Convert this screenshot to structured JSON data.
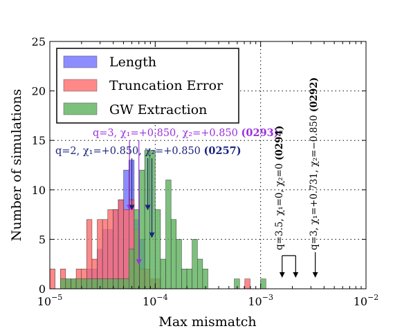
{
  "chart_data": {
    "type": "bar",
    "subtype": "histogram",
    "xscale": "log",
    "xlim": [
      1e-05,
      0.01
    ],
    "ylim": [
      0,
      25
    ],
    "xlabel": "Max mismatch",
    "ylabel": "Number of simulations",
    "xticks": [
      {
        "value": 1e-05,
        "base": "10",
        "exp": "−5"
      },
      {
        "value": 0.0001,
        "base": "10",
        "exp": "−4"
      },
      {
        "value": 0.001,
        "base": "10",
        "exp": "−3"
      },
      {
        "value": 0.01,
        "base": "10",
        "exp": "−2"
      }
    ],
    "yticks": [
      0,
      5,
      10,
      15,
      20,
      25
    ],
    "grid": true,
    "legend_position": "top-left",
    "bin_log10_start": -5.0,
    "bin_log10_width": 0.05,
    "series": [
      {
        "name": "Length",
        "color": "#7070ff",
        "opacity": 0.8,
        "values": [
          0,
          0,
          0,
          0,
          0,
          0,
          1,
          2,
          2,
          4,
          6,
          6,
          8,
          9,
          12,
          13,
          7,
          5,
          0,
          0,
          0,
          0,
          0,
          0,
          0,
          0,
          0,
          0,
          0,
          0,
          0,
          0,
          0,
          0,
          0,
          0,
          0,
          0,
          0,
          0,
          0,
          0,
          0,
          0,
          0,
          0,
          0,
          0,
          0,
          0,
          0,
          0,
          0,
          0,
          0,
          0,
          0,
          0,
          0,
          0
        ]
      },
      {
        "name": "Truncation Error",
        "color": "#ff6b6b",
        "opacity": 0.8,
        "values": [
          2,
          0,
          2,
          1,
          1,
          2,
          2,
          7,
          3,
          7,
          7,
          8,
          8,
          9,
          8,
          9,
          6,
          2,
          2,
          1,
          1,
          0,
          0,
          0,
          0,
          0,
          0,
          0,
          0,
          0,
          0,
          0,
          0,
          0,
          0,
          0,
          0,
          0,
          0,
          0,
          0,
          0,
          0,
          0,
          0,
          0,
          0,
          0,
          0,
          0,
          0,
          0,
          0,
          0,
          0,
          0,
          0,
          0,
          0,
          0
        ]
      },
      {
        "name": "GW Extraction",
        "color": "#5bb05b",
        "opacity": 0.8,
        "values": [
          0,
          0,
          1,
          1,
          1,
          1,
          1,
          1,
          1,
          1,
          1,
          1,
          1,
          1,
          1,
          4,
          8,
          12,
          14,
          14,
          8,
          3,
          11,
          7,
          5,
          2,
          2,
          5,
          3,
          2,
          0,
          0,
          0,
          0,
          0,
          1,
          0,
          0,
          0,
          0,
          0,
          0,
          0,
          0,
          0,
          0,
          0,
          0,
          0,
          0,
          0,
          0,
          0,
          0,
          0,
          0,
          0,
          0,
          0,
          0
        ]
      },
      {
        "name": "",
        "color": "#ff6b6b",
        "opacity": 0.8,
        "values": [
          0,
          0,
          0,
          0,
          0,
          0,
          0,
          0,
          0,
          0,
          0,
          0,
          0,
          0,
          0,
          0,
          0,
          0,
          0,
          0,
          0,
          0,
          0,
          0,
          0,
          0,
          0,
          0,
          0,
          0,
          0,
          0,
          0,
          0,
          0,
          0,
          0,
          1,
          0,
          0,
          0,
          0,
          0,
          0,
          0,
          0,
          0,
          0,
          0,
          0,
          0,
          0,
          0,
          0,
          0,
          0,
          0,
          0,
          0,
          0
        ]
      },
      {
        "name": "",
        "color": "#5bb05b",
        "opacity": 0.8,
        "values": [
          0,
          0,
          0,
          0,
          0,
          0,
          0,
          0,
          0,
          0,
          0,
          0,
          0,
          0,
          0,
          0,
          0,
          0,
          0,
          0,
          0,
          0,
          0,
          0,
          0,
          0,
          0,
          0,
          0,
          0,
          0,
          0,
          0,
          0,
          0,
          0,
          0,
          0,
          0,
          0,
          1,
          0,
          0,
          0,
          0,
          0,
          0,
          0,
          0,
          0,
          0,
          0,
          0,
          0,
          0,
          0,
          0,
          0,
          0,
          0
        ]
      }
    ],
    "annotations": [
      {
        "id": "a293",
        "label": "q=3, χ₁=+0.850, χ₂=+0.850",
        "id_label": "(0293)",
        "color": "#9a30e0",
        "x": [
          5.7e-05,
          7e-05
        ],
        "y": [
          8,
          2.5
        ]
      },
      {
        "id": "a257",
        "label": "q=2, χ₁=+0.850, χ₂=+0.850",
        "id_label": "(0257)",
        "color": "#1a237e",
        "x": [
          6e-05,
          8.5e-05,
          9.3e-05
        ],
        "y": [
          8,
          8,
          5.2
        ]
      },
      {
        "id": "a294",
        "label": "q=3.5, χ₁=0, χ₂=0",
        "id_label": "(0294)",
        "color": "#000000",
        "x": [
          0.0016,
          0.00215
        ],
        "y": [
          1.2,
          1.2
        ]
      },
      {
        "id": "a292",
        "label": "q=3, χ₁=+0.731, χ₂=−0.850",
        "id_label": "(0292)",
        "color": "#000000",
        "x": [
          0.0033
        ],
        "y": [
          1.2
        ]
      }
    ]
  }
}
